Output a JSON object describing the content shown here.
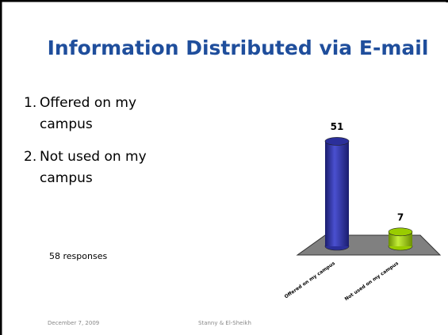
{
  "slide": {
    "title": "Information Distributed via E-mail",
    "items": [
      "Offered on my campus",
      "Not used on my campus"
    ],
    "note": "58 responses",
    "footer_date": "December 7, 2009",
    "footer_authors": "Stanny & El-Sheikh"
  },
  "chart_data": {
    "type": "bar3d",
    "categories": [
      "Offered on my campus",
      "Not used on my campus"
    ],
    "values": [
      51,
      7
    ],
    "colors": [
      "#2b2f9a",
      "#99cc00"
    ]
  }
}
